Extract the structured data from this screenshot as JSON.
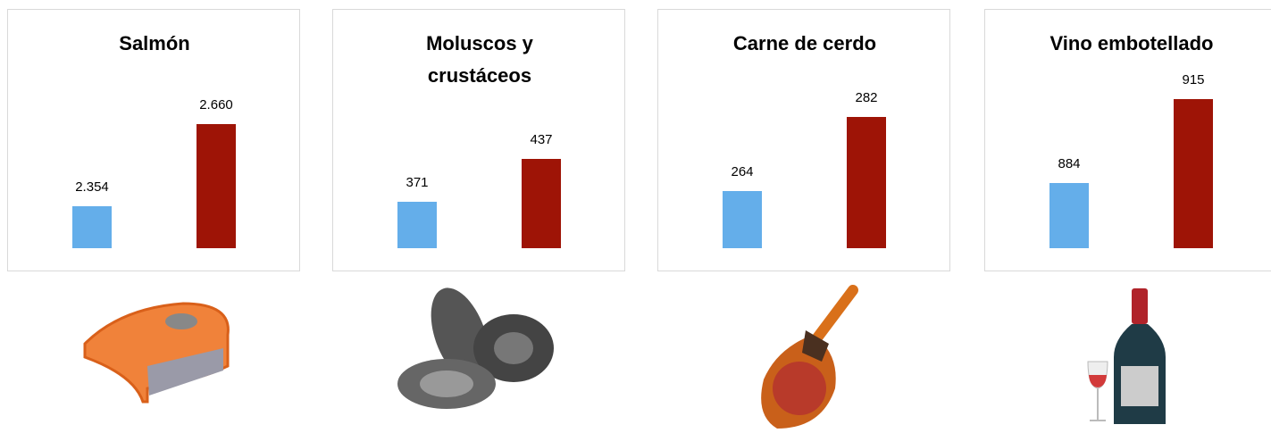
{
  "chart_data": [
    {
      "type": "bar",
      "title": "Salmón",
      "values": [
        2354,
        2660
      ],
      "value_labels": [
        "2.354",
        "2.660"
      ],
      "colors": [
        "#64aeea",
        "#9e1406"
      ],
      "ylim": [
        2200,
        2850
      ]
    },
    {
      "type": "bar",
      "title": "Moluscos y crustáceos",
      "values": [
        371,
        437
      ],
      "value_labels": [
        "371",
        "437"
      ],
      "colors": [
        "#64aeea",
        "#9e1406"
      ],
      "ylim": [
        300,
        570
      ]
    },
    {
      "type": "bar",
      "title": "Carne de cerdo",
      "values": [
        264,
        282
      ],
      "value_labels": [
        "264",
        "282"
      ],
      "colors": [
        "#64aeea",
        "#9e1406"
      ],
      "ylim": [
        250,
        293
      ]
    },
    {
      "type": "bar",
      "title": "Vino embotellado",
      "values": [
        884,
        915
      ],
      "value_labels": [
        "884",
        "915"
      ],
      "colors": [
        "#64aeea",
        "#9e1406"
      ],
      "ylim": [
        860,
        925
      ]
    }
  ]
}
